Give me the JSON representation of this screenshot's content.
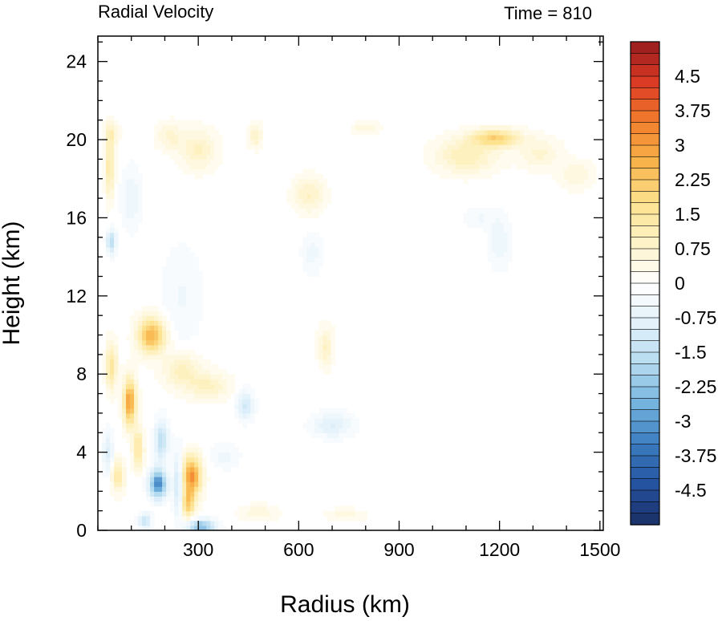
{
  "chart_data": {
    "type": "heatmap",
    "title_left": "Radial Velocity",
    "title_right": "Time = 810",
    "xlabel": "Radius (km)",
    "ylabel": "Height (km)",
    "xlim": [
      0,
      1510
    ],
    "ylim": [
      0,
      25.3
    ],
    "x_ticks": [
      300,
      600,
      900,
      1200,
      1500
    ],
    "x_tick_labels": [
      "300",
      "600",
      "900",
      "1200",
      "1500"
    ],
    "y_ticks": [
      0,
      4,
      8,
      12,
      16,
      20,
      24
    ],
    "y_tick_labels": [
      "0",
      "4",
      "8",
      "12",
      "16",
      "20",
      "24"
    ],
    "colorbar": {
      "min": -5.25,
      "max": 5.25,
      "step": 0.25,
      "labels": [
        "4.5",
        "3.75",
        "3",
        "2.25",
        "1.5",
        "0.75",
        "0",
        "-0.75",
        "-1.5",
        "-2.25",
        "-3",
        "-3.75",
        "-4.5"
      ],
      "label_values": [
        4.5,
        3.75,
        3,
        2.25,
        1.5,
        0.75,
        0,
        -0.75,
        -1.5,
        -2.25,
        -3,
        -3.75,
        -4.5
      ],
      "colors_neg": [
        "#1b2f66",
        "#2553a0",
        "#3b7cc0",
        "#74b3de",
        "#b5dbf0",
        "#e2f1fa",
        "#ffffff"
      ],
      "colors_pos": [
        "#ffffff",
        "#fef3c8",
        "#fde28f",
        "#f8b44a",
        "#f27e2d",
        "#db3a24",
        "#951c1e"
      ]
    },
    "features": [
      {
        "r": 280,
        "z": 2.8,
        "sr": 28,
        "sz": 1.0,
        "v": 3.2
      },
      {
        "r": 270,
        "z": 1.4,
        "sr": 20,
        "sz": 0.7,
        "v": 2.0
      },
      {
        "r": 160,
        "z": 10.0,
        "sr": 40,
        "sz": 0.9,
        "v": 2.7
      },
      {
        "r": 95,
        "z": 6.6,
        "sr": 18,
        "sz": 1.2,
        "v": 3.0
      },
      {
        "r": 120,
        "z": 4.2,
        "sr": 15,
        "sz": 1.0,
        "v": 1.6
      },
      {
        "r": 60,
        "z": 2.8,
        "sr": 18,
        "sz": 0.8,
        "v": 1.4
      },
      {
        "r": 40,
        "z": 8.4,
        "sr": 16,
        "sz": 1.2,
        "v": 1.6
      },
      {
        "r": 35,
        "z": 18.6,
        "sr": 14,
        "sz": 1.5,
        "v": 1.4
      },
      {
        "r": 40,
        "z": 20.3,
        "sr": 20,
        "sz": 0.6,
        "v": 0.9
      },
      {
        "r": 250,
        "z": 8.2,
        "sr": 55,
        "sz": 0.9,
        "v": 1.0
      },
      {
        "r": 330,
        "z": 7.4,
        "sr": 60,
        "sz": 0.7,
        "v": 0.9
      },
      {
        "r": 300,
        "z": 19.5,
        "sr": 55,
        "sz": 1.0,
        "v": 0.9
      },
      {
        "r": 215,
        "z": 20.2,
        "sr": 40,
        "sz": 0.7,
        "v": 0.7
      },
      {
        "r": 470,
        "z": 20.2,
        "sr": 20,
        "sz": 0.6,
        "v": 0.9
      },
      {
        "r": 630,
        "z": 17.2,
        "sr": 45,
        "sz": 0.9,
        "v": 0.9
      },
      {
        "r": 680,
        "z": 9.4,
        "sr": 22,
        "sz": 1.0,
        "v": 0.9
      },
      {
        "r": 800,
        "z": 20.6,
        "sr": 40,
        "sz": 0.3,
        "v": 0.6
      },
      {
        "r": 1100,
        "z": 19.2,
        "sr": 90,
        "sz": 0.9,
        "v": 1.1
      },
      {
        "r": 1190,
        "z": 20.1,
        "sr": 70,
        "sz": 0.45,
        "v": 2.0
      },
      {
        "r": 1320,
        "z": 19.3,
        "sr": 60,
        "sz": 0.8,
        "v": 0.7
      },
      {
        "r": 1430,
        "z": 18.2,
        "sr": 50,
        "sz": 0.7,
        "v": 0.6
      },
      {
        "r": 480,
        "z": 0.9,
        "sr": 55,
        "sz": 0.4,
        "v": 0.6
      },
      {
        "r": 740,
        "z": 0.8,
        "sr": 60,
        "sz": 0.3,
        "v": 0.5
      },
      {
        "r": 180,
        "z": 2.4,
        "sr": 25,
        "sz": 0.7,
        "v": -3.4
      },
      {
        "r": 190,
        "z": 4.6,
        "sr": 20,
        "sz": 1.0,
        "v": -1.6
      },
      {
        "r": 240,
        "z": 2.4,
        "sr": 14,
        "sz": 1.6,
        "v": -1.5
      },
      {
        "r": 310,
        "z": 0.2,
        "sr": 40,
        "sz": 0.35,
        "v": -2.5
      },
      {
        "r": 140,
        "z": 0.5,
        "sr": 20,
        "sz": 0.4,
        "v": -1.3
      },
      {
        "r": 40,
        "z": 14.8,
        "sr": 14,
        "sz": 0.6,
        "v": -1.6
      },
      {
        "r": 30,
        "z": 4.0,
        "sr": 14,
        "sz": 1.0,
        "v": -1.0
      },
      {
        "r": 440,
        "z": 6.4,
        "sr": 25,
        "sz": 0.7,
        "v": -1.2
      },
      {
        "r": 700,
        "z": 5.4,
        "sr": 60,
        "sz": 0.6,
        "v": -0.9
      },
      {
        "r": 380,
        "z": 3.8,
        "sr": 40,
        "sz": 0.6,
        "v": -0.5
      },
      {
        "r": 640,
        "z": 14.2,
        "sr": 30,
        "sz": 1.0,
        "v": -0.5
      },
      {
        "r": 1200,
        "z": 14.8,
        "sr": 30,
        "sz": 1.3,
        "v": -0.6
      },
      {
        "r": 1140,
        "z": 16.0,
        "sr": 45,
        "sz": 0.5,
        "v": -0.4
      },
      {
        "r": 250,
        "z": 12.0,
        "sr": 60,
        "sz": 2.5,
        "v": -0.4
      },
      {
        "r": 100,
        "z": 17.0,
        "sr": 30,
        "sz": 1.5,
        "v": -0.6
      }
    ]
  }
}
